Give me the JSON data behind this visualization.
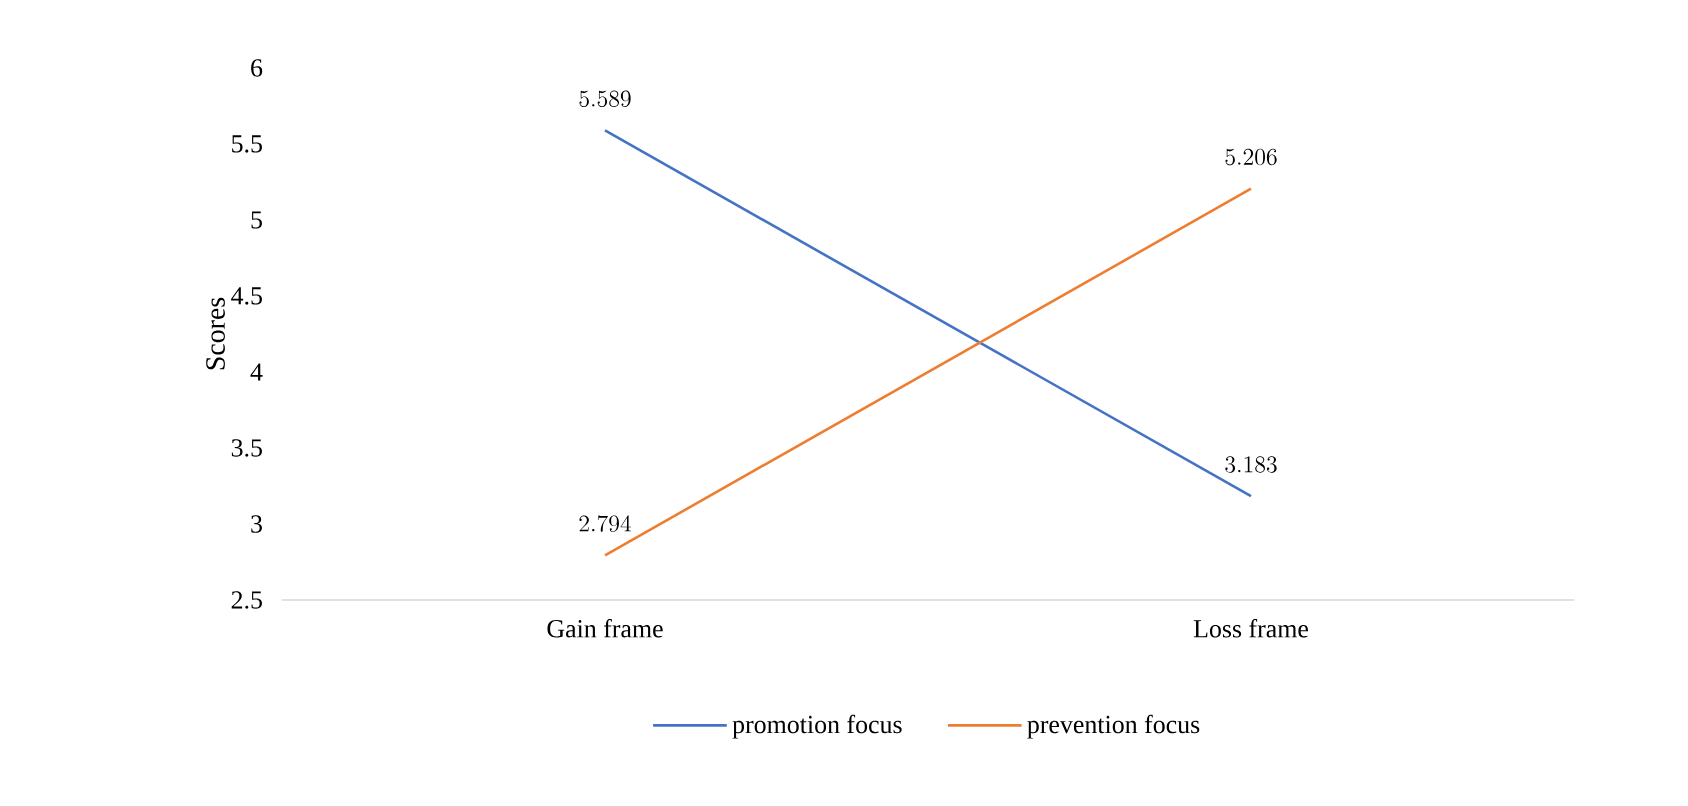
{
  "chart_data": {
    "type": "line",
    "categories": [
      "Gain frame",
      "Loss frame"
    ],
    "ylabel": "Scores",
    "ylim": [
      2.5,
      6
    ],
    "yticks": [
      2.5,
      3,
      3.5,
      4,
      4.5,
      5,
      5.5,
      6
    ],
    "series": [
      {
        "name": "promotion focus",
        "color": "#4472c4",
        "values": [
          5.589,
          3.183
        ]
      },
      {
        "name": "prevention focus",
        "color": "#ed7d31",
        "values": [
          2.794,
          5.206
        ]
      }
    ],
    "data_labels": true,
    "legend": "bottom",
    "grid": false,
    "marker": "none"
  }
}
